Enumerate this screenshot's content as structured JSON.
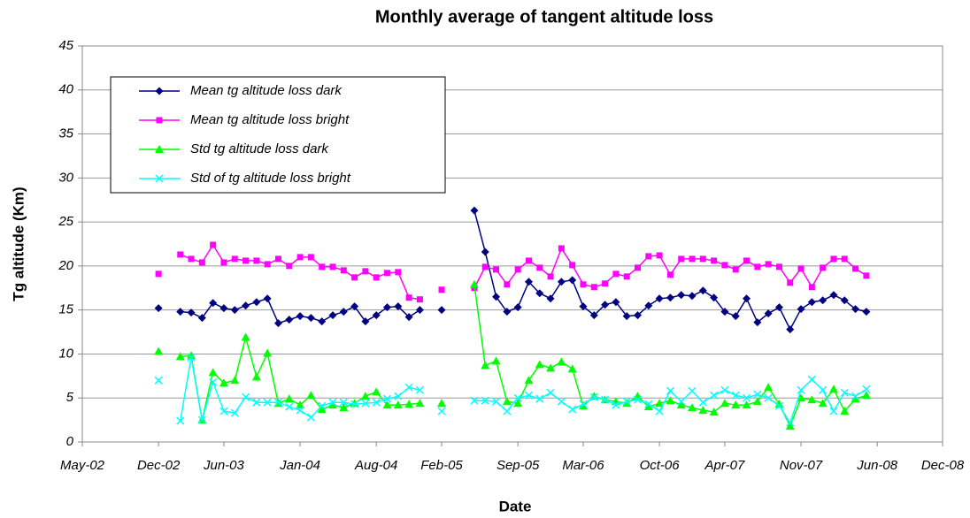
{
  "chart_data": {
    "type": "line",
    "title": "Monthly average of tangent altitude loss",
    "x_label": "Date",
    "y_label": "Tg altitude (Km)",
    "x": [
      "2002-12",
      "2003-01",
      "2003-02",
      "2003-03",
      "2003-04",
      "2003-05",
      "2003-06",
      "2003-07",
      "2003-08",
      "2003-09",
      "2003-10",
      "2003-11",
      "2003-12",
      "2004-01",
      "2004-02",
      "2004-03",
      "2004-04",
      "2004-05",
      "2004-06",
      "2004-07",
      "2004-08",
      "2004-09",
      "2004-10",
      "2004-11",
      "2004-12",
      "2005-01",
      "2005-02",
      "2005-03",
      "2005-04",
      "2005-05",
      "2005-06",
      "2005-07",
      "2005-08",
      "2005-09",
      "2005-10",
      "2005-11",
      "2005-12",
      "2006-01",
      "2006-02",
      "2006-03",
      "2006-04",
      "2006-05",
      "2006-06",
      "2006-07",
      "2006-08",
      "2006-09",
      "2006-10",
      "2006-11",
      "2006-12",
      "2007-01",
      "2007-02",
      "2007-03",
      "2007-04",
      "2007-05",
      "2007-06",
      "2007-07",
      "2007-08",
      "2007-09",
      "2007-10",
      "2007-11",
      "2007-12",
      "2008-01",
      "2008-02",
      "2008-03",
      "2008-04",
      "2008-05"
    ],
    "series": [
      {
        "name": "Mean tg altitude loss dark",
        "color": "#000080",
        "marker": "diamond",
        "values": [
          15.2,
          null,
          14.8,
          14.7,
          14.1,
          15.8,
          15.2,
          15.0,
          15.5,
          15.9,
          16.3,
          13.5,
          13.9,
          14.3,
          14.1,
          13.7,
          14.4,
          14.8,
          15.4,
          13.7,
          14.4,
          15.3,
          15.4,
          14.2,
          15.0,
          null,
          15.0,
          null,
          null,
          26.3,
          21.6,
          16.5,
          14.8,
          15.3,
          18.2,
          16.9,
          16.3,
          18.2,
          18.4,
          15.4,
          14.4,
          15.6,
          15.9,
          14.3,
          14.4,
          15.5,
          16.3,
          16.4,
          16.7,
          16.6,
          17.2,
          16.4,
          14.8,
          14.3,
          16.3,
          13.6,
          14.6,
          15.3,
          12.8,
          15.1,
          15.9,
          16.1,
          16.7,
          16.1,
          15.1,
          14.8
        ]
      },
      {
        "name": "Mean tg altitude loss bright",
        "color": "#ff00ff",
        "marker": "square",
        "values": [
          19.1,
          null,
          21.3,
          20.8,
          20.4,
          22.4,
          20.4,
          20.8,
          20.6,
          20.6,
          20.2,
          20.8,
          20.0,
          21.0,
          21.0,
          19.9,
          19.9,
          19.5,
          18.7,
          19.4,
          18.7,
          19.2,
          19.3,
          16.4,
          16.2,
          null,
          17.3,
          null,
          null,
          17.5,
          19.9,
          19.6,
          17.9,
          19.6,
          20.6,
          19.8,
          18.8,
          22.0,
          20.1,
          17.9,
          17.6,
          18.0,
          19.1,
          18.8,
          19.8,
          21.1,
          21.2,
          19.0,
          20.8,
          20.8,
          20.8,
          20.6,
          20.1,
          19.6,
          20.6,
          19.9,
          20.2,
          19.9,
          18.1,
          19.7,
          17.6,
          19.8,
          20.8,
          20.8,
          19.7,
          18.9
        ]
      },
      {
        "name": "Std tg altitude loss dark",
        "color": "#00ff00",
        "marker": "triangle",
        "values": [
          10.3,
          null,
          9.7,
          9.8,
          2.5,
          7.9,
          6.7,
          7.0,
          11.9,
          7.4,
          10.1,
          4.4,
          4.9,
          4.2,
          5.3,
          3.7,
          4.2,
          3.9,
          4.4,
          5.2,
          5.7,
          4.2,
          4.2,
          4.3,
          4.4,
          null,
          4.4,
          null,
          null,
          17.9,
          8.7,
          9.2,
          4.6,
          4.4,
          7.0,
          8.8,
          8.4,
          9.1,
          8.3,
          4.1,
          5.2,
          4.8,
          4.6,
          4.4,
          5.2,
          4.0,
          4.4,
          4.7,
          4.2,
          3.9,
          3.6,
          3.4,
          4.4,
          4.2,
          4.2,
          4.6,
          6.2,
          4.3,
          1.8,
          5.0,
          4.8,
          4.4,
          6.0,
          3.5,
          4.9,
          5.3
        ]
      },
      {
        "name": "Std of tg altitude loss bright",
        "color": "#00ffff",
        "marker": "x",
        "values": [
          7.0,
          null,
          2.4,
          9.6,
          2.5,
          6.8,
          3.5,
          3.3,
          5.1,
          4.5,
          4.5,
          4.5,
          4.0,
          3.6,
          2.8,
          4.1,
          4.5,
          4.5,
          4.3,
          4.4,
          4.5,
          4.9,
          5.2,
          6.2,
          5.9,
          null,
          3.5,
          null,
          null,
          4.7,
          4.7,
          4.6,
          3.5,
          5.0,
          5.3,
          4.9,
          5.6,
          4.6,
          3.7,
          4.3,
          5.1,
          4.8,
          4.2,
          4.6,
          4.8,
          4.3,
          3.5,
          5.8,
          4.6,
          5.8,
          4.5,
          5.3,
          5.9,
          5.3,
          5.0,
          5.4,
          5.0,
          4.1,
          2.2,
          5.9,
          7.1,
          5.9,
          3.5,
          5.6,
          5.2,
          6.0
        ]
      }
    ],
    "xlim": [
      "2002-05",
      "2008-12"
    ],
    "xticks": [
      {
        "value": "2002-05",
        "label": "May-02"
      },
      {
        "value": "2002-12",
        "label": "Dec-02"
      },
      {
        "value": "2003-06",
        "label": "Jun-03"
      },
      {
        "value": "2004-01",
        "label": "Jan-04"
      },
      {
        "value": "2004-08",
        "label": "Aug-04"
      },
      {
        "value": "2005-02",
        "label": "Feb-05"
      },
      {
        "value": "2005-09",
        "label": "Sep-05"
      },
      {
        "value": "2006-03",
        "label": "Mar-06"
      },
      {
        "value": "2006-10",
        "label": "Oct-06"
      },
      {
        "value": "2007-04",
        "label": "Apr-07"
      },
      {
        "value": "2007-11",
        "label": "Nov-07"
      },
      {
        "value": "2008-06",
        "label": "Jun-08"
      },
      {
        "value": "2008-12",
        "label": "Dec-08"
      }
    ],
    "ylim": [
      0,
      45
    ],
    "yticks": [
      0,
      5,
      10,
      15,
      20,
      25,
      30,
      35,
      40,
      45
    ],
    "grid": true,
    "legend": "upper left"
  }
}
